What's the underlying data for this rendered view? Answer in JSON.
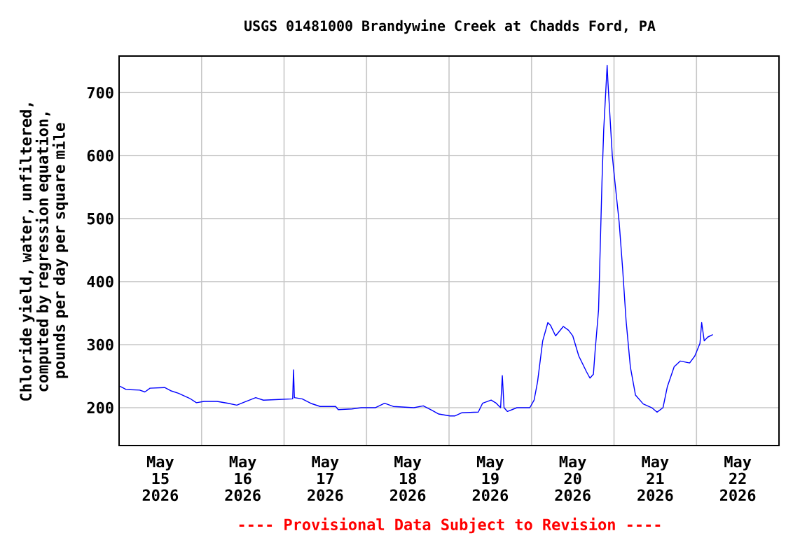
{
  "chart_data": {
    "type": "line",
    "title": "USGS 01481000 Brandywine Creek at Chadds Ford, PA",
    "ylabel": "Chloride yield, water, unfiltered, computed by regression equation, pounds per day per square mile",
    "annotations": [
      "---- Provisional Data Subject to Revision ----"
    ],
    "x": [
      "2026-05-15T00:15",
      "2026-05-15T02:00",
      "2026-05-15T06:00",
      "2026-05-15T07:30",
      "2026-05-15T09:00",
      "2026-05-15T13:15",
      "2026-05-15T15:00",
      "2026-05-15T17:15",
      "2026-05-15T20:30",
      "2026-05-15T22:30",
      "2026-05-16T00:45",
      "2026-05-16T04:30",
      "2026-05-16T07:45",
      "2026-05-16T10:15",
      "2026-05-16T12:00",
      "2026-05-16T15:45",
      "2026-05-16T18:00",
      "2026-05-16T22:30",
      "2026-05-17T02:30",
      "2026-05-17T02:45",
      "2026-05-17T03:00",
      "2026-05-17T05:15",
      "2026-05-17T07:45",
      "2026-05-17T10:30",
      "2026-05-17T15:00",
      "2026-05-17T15:45",
      "2026-05-17T19:45",
      "2026-05-17T22:30",
      "2026-05-18T02:30",
      "2026-05-18T05:15",
      "2026-05-18T07:45",
      "2026-05-18T13:45",
      "2026-05-18T16:30",
      "2026-05-18T19:00",
      "2026-05-18T21:00",
      "2026-05-19T00:15",
      "2026-05-19T01:45",
      "2026-05-19T03:45",
      "2026-05-19T08:30",
      "2026-05-19T09:45",
      "2026-05-19T12:15",
      "2026-05-19T13:45",
      "2026-05-19T15:00",
      "2026-05-19T15:30",
      "2026-05-19T16:00",
      "2026-05-19T17:00",
      "2026-05-19T19:45",
      "2026-05-19T23:30",
      "2026-05-20T00:45",
      "2026-05-20T01:45",
      "2026-05-20T03:15",
      "2026-05-20T04:45",
      "2026-05-20T05:30",
      "2026-05-20T07:00",
      "2026-05-20T09:15",
      "2026-05-20T10:45",
      "2026-05-20T12:00",
      "2026-05-20T13:45",
      "2026-05-20T16:00",
      "2026-05-20T17:00",
      "2026-05-20T18:00",
      "2026-05-20T18:30",
      "2026-05-20T19:30",
      "2026-05-20T20:30",
      "2026-05-20T21:00",
      "2026-05-20T22:00",
      "2026-05-20T22:15",
      "2026-05-20T23:30",
      "2026-05-21T00:15",
      "2026-05-21T01:30",
      "2026-05-21T02:30",
      "2026-05-21T03:30",
      "2026-05-21T04:45",
      "2026-05-21T06:15",
      "2026-05-21T08:30",
      "2026-05-21T11:00",
      "2026-05-21T12:30",
      "2026-05-21T14:15",
      "2026-05-21T15:30",
      "2026-05-21T17:30",
      "2026-05-21T19:15",
      "2026-05-21T22:00",
      "2026-05-21T23:30",
      "2026-05-22T01:00",
      "2026-05-22T01:30",
      "2026-05-22T02:15",
      "2026-05-22T03:15",
      "2026-05-22T04:45"
    ],
    "series": [
      {
        "color": "#0000ff",
        "values": [
          234,
          229,
          228,
          225,
          231,
          232,
          227,
          223,
          215,
          208,
          210,
          210,
          207,
          204,
          208,
          216,
          212,
          213,
          214,
          260,
          216,
          214,
          207,
          202,
          202,
          197,
          198,
          200,
          200,
          207,
          202,
          200,
          203,
          196,
          190,
          187,
          187,
          192,
          193,
          207,
          212,
          207,
          200,
          251,
          200,
          194,
          200,
          200,
          212,
          241,
          306,
          335,
          331,
          314,
          329,
          323,
          314,
          282,
          257,
          247,
          253,
          290,
          355,
          559,
          641,
          743,
          715,
          600,
          559,
          494,
          421,
          339,
          265,
          220,
          206,
          200,
          193,
          200,
          233,
          265,
          274,
          271,
          282,
          302,
          335,
          306,
          312,
          316
        ]
      }
    ],
    "xlim": [
      "2026-05-15T00:00",
      "2026-05-23T00:00"
    ],
    "xticks": [
      {
        "value": "2026-05-15T12:00",
        "label": "May 15 2026"
      },
      {
        "value": "2026-05-16T12:00",
        "label": "May 16 2026"
      },
      {
        "value": "2026-05-17T12:00",
        "label": "May 17 2026"
      },
      {
        "value": "2026-05-18T12:00",
        "label": "May 18 2026"
      },
      {
        "value": "2026-05-19T12:00",
        "label": "May 19 2026"
      },
      {
        "value": "2026-05-20T12:00",
        "label": "May 20 2026"
      },
      {
        "value": "2026-05-21T12:00",
        "label": "May 21 2026"
      },
      {
        "value": "2026-05-22T12:00",
        "label": "May 22 2026"
      },
      {
        "value": "2026-05-16T00:00",
        "label": null
      },
      {
        "value": "2026-05-17T00:00",
        "label": null
      },
      {
        "value": "2026-05-18T00:00",
        "label": null
      },
      {
        "value": "2026-05-19T00:00",
        "label": null
      },
      {
        "value": "2026-05-20T00:00",
        "label": null
      },
      {
        "value": "2026-05-21T00:00",
        "label": null
      },
      {
        "value": "2026-05-22T00:00",
        "label": null
      }
    ],
    "ylim": [
      140,
      758
    ],
    "yticks": [
      200,
      300,
      400,
      500,
      600,
      700
    ],
    "grid": true,
    "marker": "none",
    "line_style": "solid"
  }
}
